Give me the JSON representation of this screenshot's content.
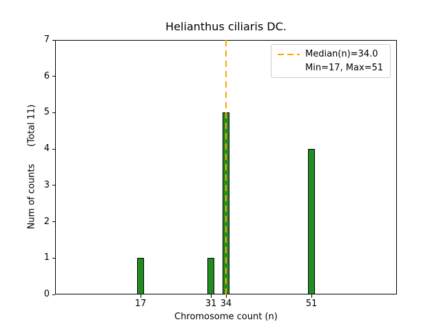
{
  "chart_data": {
    "type": "bar",
    "title": "Helianthus ciliaris DC.",
    "xlabel": "Chromosome count (n)",
    "ylabel": "Num of counts      (Total 11)",
    "x": [
      17,
      31,
      34,
      51
    ],
    "values": [
      1,
      1,
      5,
      4
    ],
    "total_counts": 11,
    "xlim": [
      0,
      68
    ],
    "ylim": [
      0,
      7
    ],
    "xticks": [
      17,
      31,
      34,
      51
    ],
    "yticks": [
      0,
      1,
      2,
      3,
      4,
      5,
      6,
      7
    ],
    "median": 34.0,
    "min": 17,
    "max": 51,
    "bar_color": "#228B22",
    "bar_edge_color": "#000000",
    "median_line_color": "#FFA500",
    "legend_position": "upper-right",
    "legend": {
      "median_label": "Median(n)=34.0",
      "minmax_label": "Min=17, Max=51"
    }
  }
}
